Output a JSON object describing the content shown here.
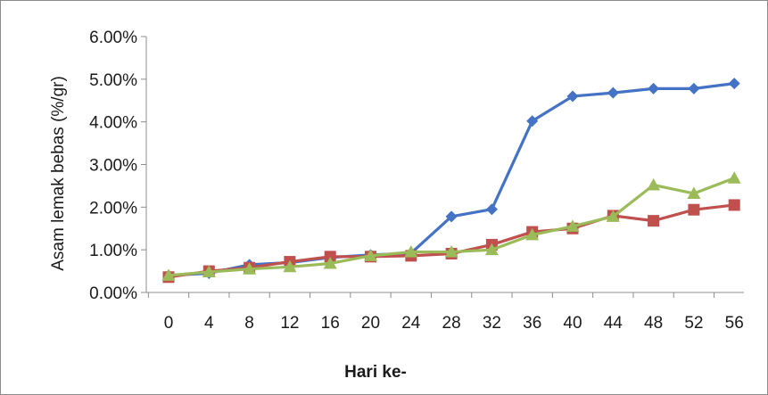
{
  "chart_data": {
    "type": "line",
    "xlabel": "Hari ke-",
    "ylabel": "Asam lemak bebas (%/gr)",
    "categories": [
      "0",
      "4",
      "8",
      "12",
      "16",
      "20",
      "24",
      "28",
      "32",
      "36",
      "40",
      "44",
      "48",
      "52",
      "56"
    ],
    "ylim": [
      0,
      6
    ],
    "yticks": [
      "0.00%",
      "1.00%",
      "2.00%",
      "3.00%",
      "4.00%",
      "5.00%",
      "6.00%"
    ],
    "grid": false,
    "legend": "none",
    "series": [
      {
        "color": "#4472c4",
        "marker": "diamond",
        "values": [
          0.4,
          0.45,
          0.65,
          0.7,
          0.82,
          0.88,
          0.92,
          1.78,
          1.95,
          4.02,
          4.6,
          4.68,
          4.78,
          4.78,
          4.9
        ]
      },
      {
        "color": "#c0504d",
        "marker": "square",
        "values": [
          0.36,
          0.5,
          0.58,
          0.72,
          0.84,
          0.84,
          0.86,
          0.91,
          1.12,
          1.42,
          1.5,
          1.8,
          1.68,
          1.94,
          2.05
        ]
      },
      {
        "color": "#9bbb59",
        "marker": "triangle",
        "values": [
          0.4,
          0.48,
          0.55,
          0.6,
          0.68,
          0.86,
          0.95,
          0.95,
          1.0,
          1.35,
          1.55,
          1.78,
          2.52,
          2.32,
          2.68
        ]
      }
    ]
  }
}
